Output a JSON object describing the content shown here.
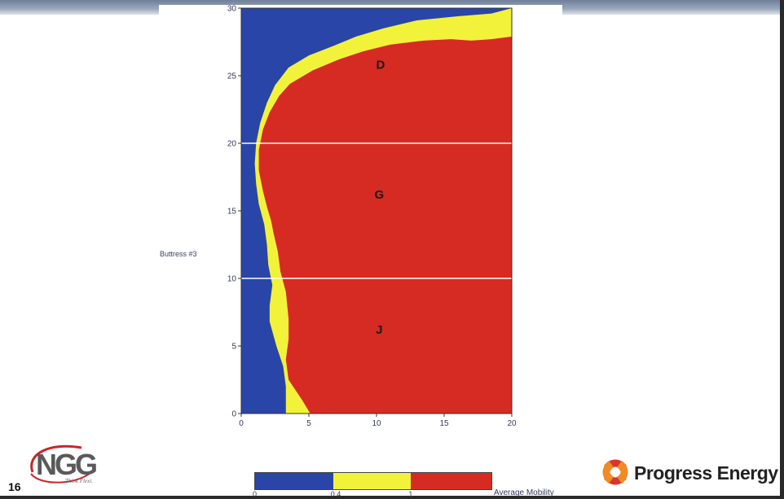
{
  "page": {
    "number": "16",
    "side_label": "Buttress #3"
  },
  "logos": {
    "ngg_text": "NGG",
    "ngg_tagline": "Think Flexi.",
    "progress_text": "Progress Energy",
    "progress_icon": "progress-energy-icon"
  },
  "chart_data": {
    "type": "heatmap",
    "title": "",
    "xlabel": "",
    "ylabel": "",
    "xlim": [
      0,
      20
    ],
    "ylim": [
      0,
      30
    ],
    "x_ticks": [
      0,
      5,
      10,
      15,
      20
    ],
    "y_ticks": [
      0,
      5,
      10,
      15,
      20,
      25,
      30
    ],
    "horizontal_lines": [
      20,
      10
    ],
    "colors": {
      "low": "#2a45a8",
      "mid": "#f2f23a",
      "high": "#d62b22"
    },
    "yellow_boundary": [
      [
        3.3,
        0
      ],
      [
        3.3,
        2
      ],
      [
        3.1,
        3.5
      ],
      [
        2.6,
        5
      ],
      [
        2.1,
        6.8
      ],
      [
        2.1,
        8
      ],
      [
        2.3,
        9.5
      ],
      [
        2.0,
        11
      ],
      [
        1.9,
        12.5
      ],
      [
        1.7,
        14
      ],
      [
        1.3,
        15.5
      ],
      [
        1.1,
        17
      ],
      [
        1.0,
        18.5
      ],
      [
        1.1,
        20
      ],
      [
        1.4,
        21.5
      ],
      [
        1.9,
        23
      ],
      [
        2.5,
        24.3
      ],
      [
        3.5,
        25.6
      ],
      [
        5.0,
        26.5
      ],
      [
        6.8,
        27.2
      ],
      [
        8.5,
        27.9
      ],
      [
        10.5,
        28.5
      ],
      [
        13.0,
        29.1
      ],
      [
        16.0,
        29.4
      ],
      [
        18.5,
        29.6
      ],
      [
        20,
        30
      ]
    ],
    "red_boundary": [
      [
        5.1,
        0
      ],
      [
        4.5,
        1
      ],
      [
        3.5,
        2.5
      ],
      [
        3.3,
        4
      ],
      [
        3.5,
        5.5
      ],
      [
        3.5,
        7
      ],
      [
        3.3,
        9
      ],
      [
        2.9,
        10.5
      ],
      [
        2.7,
        12
      ],
      [
        2.4,
        13.3
      ],
      [
        2.2,
        14.3
      ],
      [
        1.9,
        15.3
      ],
      [
        1.6,
        16.5
      ],
      [
        1.3,
        18
      ],
      [
        1.3,
        19.5
      ],
      [
        1.6,
        21
      ],
      [
        2.1,
        22.3
      ],
      [
        2.8,
        23.5
      ],
      [
        3.6,
        24.4
      ],
      [
        5.3,
        25.4
      ],
      [
        7.2,
        26.2
      ],
      [
        9.0,
        26.8
      ],
      [
        11.0,
        27.3
      ],
      [
        13.5,
        27.6
      ],
      [
        15.5,
        27.7
      ],
      [
        17.0,
        27.6
      ],
      [
        18.5,
        27.7
      ],
      [
        20,
        27.9
      ]
    ],
    "region_labels": [
      {
        "text": "D",
        "x": 10.3,
        "y": 25.8
      },
      {
        "text": "G",
        "x": 10.2,
        "y": 16.2
      },
      {
        "text": "J",
        "x": 10.2,
        "y": 6.2
      }
    ],
    "legend": {
      "title": "Average Mobility",
      "placement": "bottom",
      "segments": [
        {
          "color": "#2a45a8",
          "share": 0.33
        },
        {
          "color": "#f2f23a",
          "share": 0.33
        },
        {
          "color": "#d62b22",
          "share": 0.34
        }
      ],
      "labels": [
        {
          "text": "0",
          "position": 0.0
        },
        {
          "text": "0.4",
          "position": 0.33
        },
        {
          "text": "1",
          "position": 0.66
        }
      ]
    }
  }
}
